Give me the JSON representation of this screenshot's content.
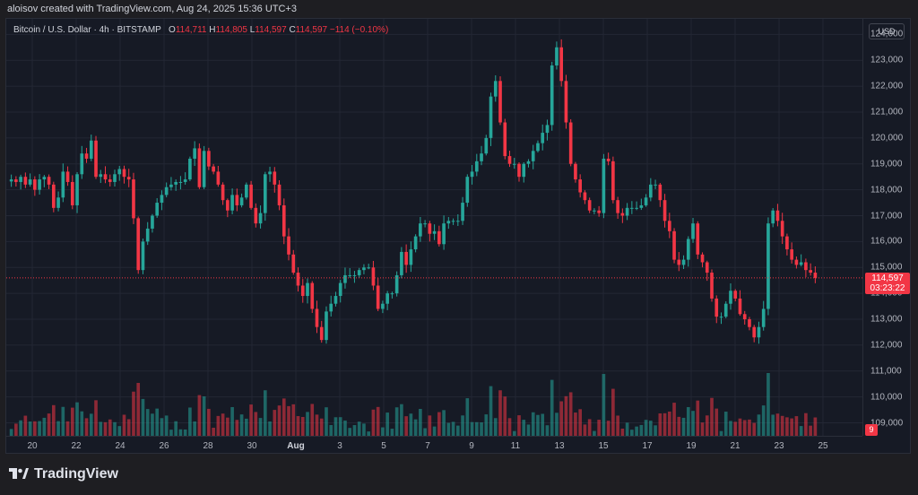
{
  "header": {
    "credit": "aloisov created with TradingView.com, Aug 24, 2025 15:36 UTC+3"
  },
  "legend": {
    "symbol": "Bitcoin / U.S. Dollar · 4h · BITSTAMP",
    "open_label": "O",
    "open": "114,711",
    "high_label": "H",
    "high": "114,805",
    "low_label": "L",
    "low": "114,597",
    "close_label": "C",
    "close": "114,597",
    "change": "−114 (−0.10%)"
  },
  "price_axis": {
    "currency": "USD",
    "ticks": [
      "124,000",
      "123,000",
      "122,000",
      "121,000",
      "120,000",
      "119,000",
      "118,000",
      "117,000",
      "116,000",
      "115,000",
      "114,000",
      "113,000",
      "112,000",
      "111,000",
      "110,000",
      "109,000"
    ],
    "last_price": "114,597",
    "countdown": "03:23:22",
    "volume_tag": "9"
  },
  "time_axis": {
    "ticks": [
      "20",
      "22",
      "24",
      "26",
      "28",
      "30",
      "Aug",
      "3",
      "5",
      "7",
      "9",
      "11",
      "13",
      "15",
      "17",
      "19",
      "21",
      "23",
      "25"
    ]
  },
  "footer": {
    "brand": "TradingView",
    "logo_icon": "tradingview-logo-icon"
  },
  "colors": {
    "up": "#26a69a",
    "down": "#f23645",
    "background": "#161a25",
    "grid": "#232734"
  },
  "chart_data": {
    "type": "candlestick",
    "title": "Bitcoin / U.S. Dollar · 4h · BITSTAMP",
    "timeframe": "4h",
    "ylim": [
      108500,
      124600
    ],
    "price_ticks": [
      124000,
      123000,
      122000,
      121000,
      120000,
      119000,
      118000,
      117000,
      116000,
      115000,
      114000,
      113000,
      112000,
      111000,
      110000,
      109000
    ],
    "last_price": 114597,
    "ohlc_last": {
      "open": 114711,
      "high": 114805,
      "low": 114597,
      "close": 114597
    },
    "x_start": "Jul 18",
    "x_end": "Aug 24",
    "x_ticks": [
      "20",
      "22",
      "24",
      "26",
      "28",
      "30",
      "Aug",
      "3",
      "5",
      "7",
      "9",
      "11",
      "13",
      "15",
      "17",
      "19",
      "21",
      "23",
      "25"
    ],
    "close_path": [
      118400,
      118300,
      118500,
      118200,
      118400,
      118000,
      118400,
      118500,
      118200,
      117300,
      117700,
      118700,
      118300,
      117400,
      118600,
      119400,
      119200,
      119900,
      118500,
      118600,
      118400,
      118300,
      118600,
      118800,
      118500,
      118400,
      116900,
      114900,
      116000,
      116500,
      117000,
      117500,
      117800,
      118100,
      118200,
      118300,
      118300,
      118400,
      119200,
      119600,
      118100,
      119500,
      118900,
      118700,
      118200,
      117600,
      117200,
      117800,
      117400,
      117700,
      118200,
      117300,
      116700,
      117100,
      118600,
      118700,
      118200,
      117400,
      116200,
      115500,
      114800,
      114300,
      113900,
      114400,
      113400,
      112700,
      112200,
      113300,
      113600,
      113900,
      114400,
      114700,
      114700,
      114700,
      114900,
      115000,
      115000,
      114300,
      113400,
      113600,
      114000,
      114000,
      114700,
      115600,
      115100,
      115700,
      116200,
      116700,
      116700,
      116300,
      116400,
      115900,
      116700,
      116800,
      116800,
      116800,
      117500,
      118500,
      118700,
      119100,
      119400,
      120000,
      121600,
      122200,
      120600,
      119300,
      119000,
      119000,
      118500,
      119000,
      119100,
      119500,
      119800,
      120200,
      120500,
      122800,
      123500,
      122200,
      120600,
      119000,
      118400,
      117900,
      117600,
      117200,
      117200,
      117100,
      119200,
      119100,
      117600,
      117100,
      117000,
      117300,
      117300,
      117300,
      117400,
      117700,
      118200,
      118200,
      117600,
      116800,
      116400,
      115300,
      115100,
      115300,
      116100,
      116700,
      115500,
      115200,
      114800,
      113800,
      113100,
      113100,
      113600,
      114100,
      113800,
      113200,
      113000,
      112700,
      112300,
      112700,
      113400,
      116700,
      117200,
      116800,
      116200,
      115700,
      115300,
      115100,
      115200,
      114900,
      114800,
      114597
    ]
  }
}
